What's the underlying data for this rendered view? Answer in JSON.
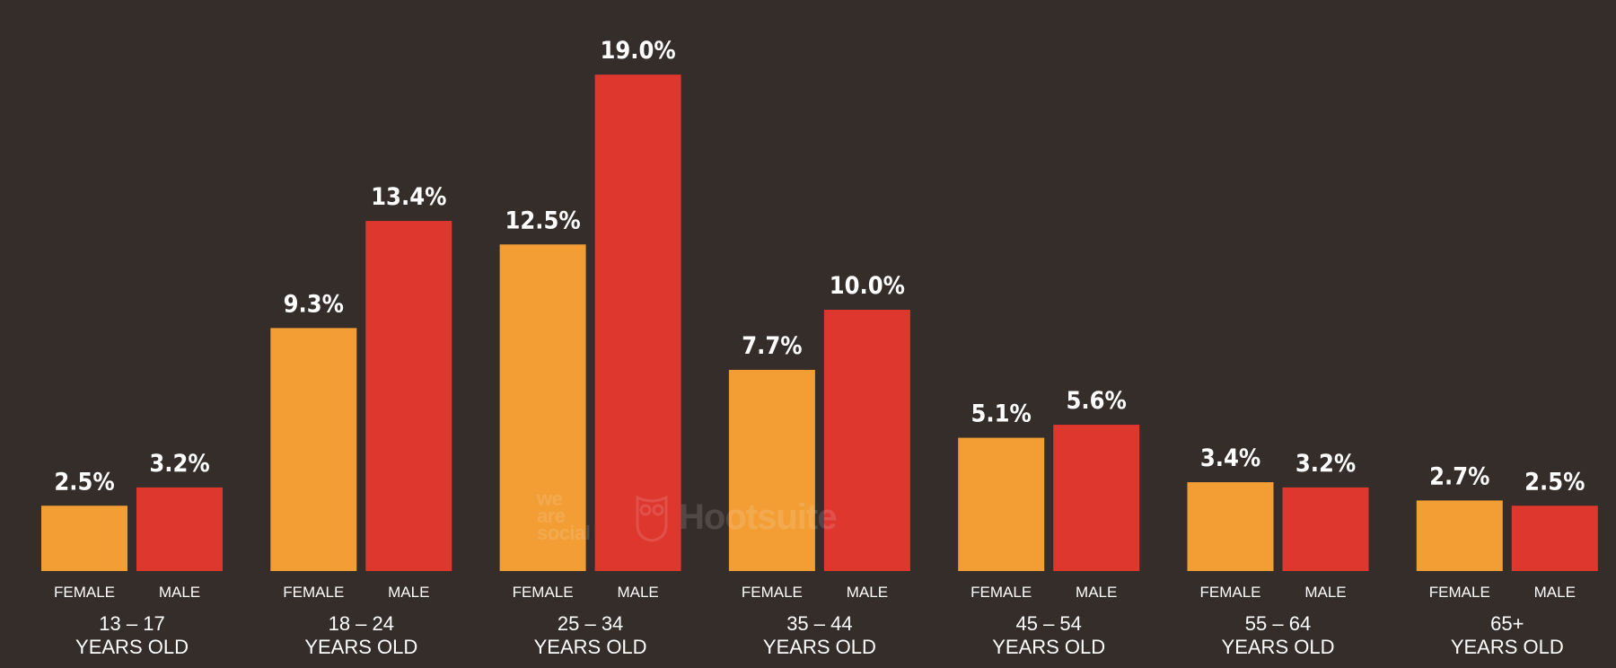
{
  "chart_data": {
    "type": "bar",
    "title": "",
    "xlabel": "",
    "ylabel": "",
    "ylim": [
      0,
      20
    ],
    "categories": [
      {
        "line1": "13 – 17",
        "line2": "YEARS OLD"
      },
      {
        "line1": "18 – 24",
        "line2": "YEARS OLD"
      },
      {
        "line1": "25 – 34",
        "line2": "YEARS OLD"
      },
      {
        "line1": "35 – 44",
        "line2": "YEARS OLD"
      },
      {
        "line1": "45 – 54",
        "line2": "YEARS OLD"
      },
      {
        "line1": "55 – 64",
        "line2": "YEARS OLD"
      },
      {
        "line1": "65+",
        "line2": "YEARS OLD"
      }
    ],
    "series": [
      {
        "name": "FEMALE",
        "color": "#f29e35",
        "values": [
          2.5,
          9.3,
          12.5,
          7.7,
          5.1,
          3.4,
          2.7
        ],
        "labels": [
          "2.5%",
          "9.3%",
          "12.5%",
          "7.7%",
          "5.1%",
          "3.4%",
          "2.7%"
        ]
      },
      {
        "name": "MALE",
        "color": "#dd372e",
        "values": [
          3.2,
          13.4,
          19.0,
          10.0,
          5.6,
          3.2,
          2.5
        ],
        "labels": [
          "3.2%",
          "13.4%",
          "19.0%",
          "10.0%",
          "5.6%",
          "3.2%",
          "2.5%"
        ]
      }
    ],
    "grid": false,
    "legend": "none"
  },
  "watermark": {
    "we_are_social": [
      "we",
      "are",
      "social"
    ],
    "hootsuite": "Hootsuite"
  }
}
